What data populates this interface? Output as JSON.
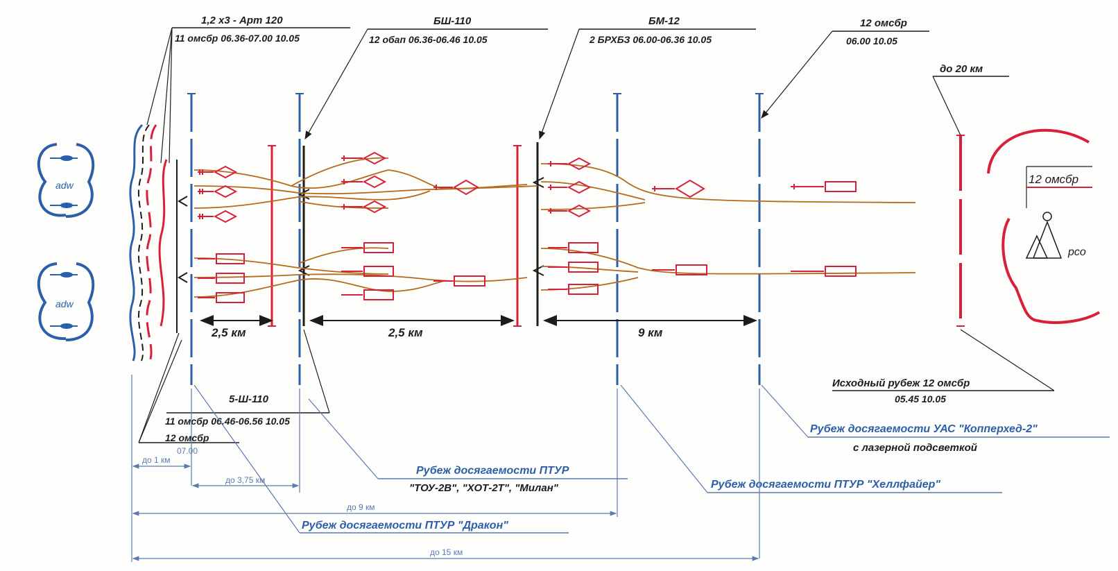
{
  "colors": {
    "own_red": "#d8203a",
    "blue": "#2b5fa8",
    "black": "#1c1c1c",
    "route_orange": "#b56a1c",
    "light_blue": "#5a7bb0"
  },
  "callouts": {
    "c1_line1": "1,2 х3 - Арт 120",
    "c1_line2": "11 омсбр 06.36-07.00 10.05",
    "c2_line1": "БШ-110",
    "c2_line2": "12 обап 06.36-06.46 10.05",
    "c3_line1": "БМ-12",
    "c3_line2": "2 БРХБЗ 06.00-06.36 10.05",
    "c4_line1": "12 омсбр",
    "c4_line2": "06.00 10.05",
    "c5_line1": "до 20 км",
    "c6_line1": "5-Ш-110",
    "c6_line2": "11 омсбр 06.46-06.56 10.05",
    "c7_line1": "12 омсбр",
    "c7_line2": "07.00",
    "c8_line1": "Исходный рубеж 12 омсбр",
    "c8_line2": "05.45 10.05"
  },
  "enemy_groups": {
    "top_label": "adw",
    "bottom_label": "adw"
  },
  "right_group": {
    "unit_label": "12 омсбр",
    "pco_label": "рсо"
  },
  "distances": {
    "d1": "2,5 км",
    "d2": "2,5 км",
    "d3": "9 км"
  },
  "range_lines": {
    "r1": "Рубеж досягаемости ПТУР \"ТОУ-2В\", \"ХОТ-2Т\", \"Милан\"",
    "r1_a": "Рубеж досягаемости ПТУР",
    "r1_b": "\"ТОУ-2В\", \"ХОТ-2Т\", \"Милан\"",
    "r2": "Рубеж досягаемости ПТУР \"Хеллфайер\"",
    "r3_a": "Рубеж досягаемости УАС \"Копперхед-2\"",
    "r3_b": "с лазерной подсветкой",
    "r4": "Рубеж досягаемости ПТУР \"Дракон\""
  },
  "bottom_distances": {
    "b1": "до 1 км",
    "b2": "до 3,75 км",
    "b3": "до 9 км",
    "b4": "до 15 км"
  }
}
